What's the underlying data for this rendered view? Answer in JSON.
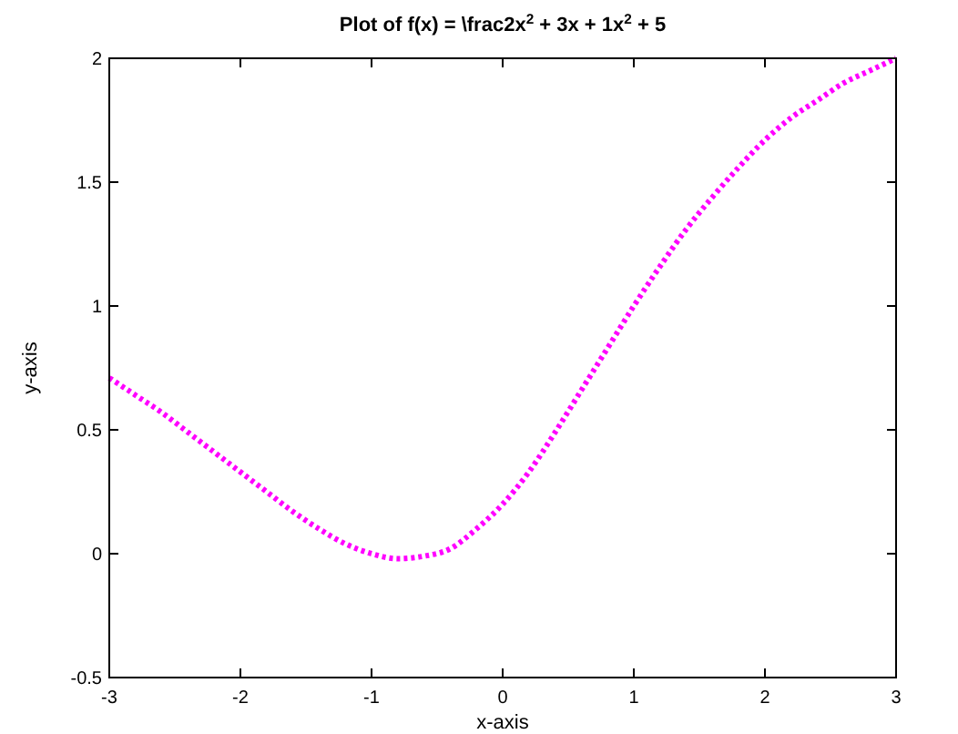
{
  "chart_data": {
    "type": "line",
    "title": "Plot of f(x) = \\frac2x$^{2}$ + 3x + 1x$^{2}$ + 5",
    "xlabel": "x-axis",
    "ylabel": "y-axis",
    "x": [
      -3,
      -2.8,
      -2.6,
      -2.4,
      -2.2,
      -2,
      -1.8,
      -1.6,
      -1.4,
      -1.2,
      -1,
      -0.8,
      -0.6,
      -0.4,
      -0.2,
      0,
      0.2,
      0.4,
      0.6,
      0.8,
      1,
      1.2,
      1.4,
      1.6,
      1.8,
      2,
      2.2,
      2.4,
      2.6,
      2.8,
      3
    ],
    "series": [
      {
        "color": "#ff00ff",
        "values": [
          0.71,
          0.64,
          0.57,
          0.49,
          0.41,
          0.33,
          0.25,
          0.17,
          0.1,
          0.04,
          0,
          -0.02,
          -0.01,
          0.02,
          0.1,
          0.2,
          0.33,
          0.49,
          0.66,
          0.83,
          1,
          1.16,
          1.31,
          1.44,
          1.56,
          1.67,
          1.76,
          1.83,
          1.9,
          1.95,
          2
        ]
      }
    ],
    "xlim": [
      -3,
      3
    ],
    "xticks": [
      -3,
      -2,
      -1,
      0,
      1,
      2,
      3
    ],
    "ylim": [
      -0.5,
      2
    ],
    "yticks": [
      -0.5,
      0,
      0.5,
      1,
      1.5,
      2
    ],
    "grid": false,
    "line_style": "dotted",
    "marker": "none"
  }
}
